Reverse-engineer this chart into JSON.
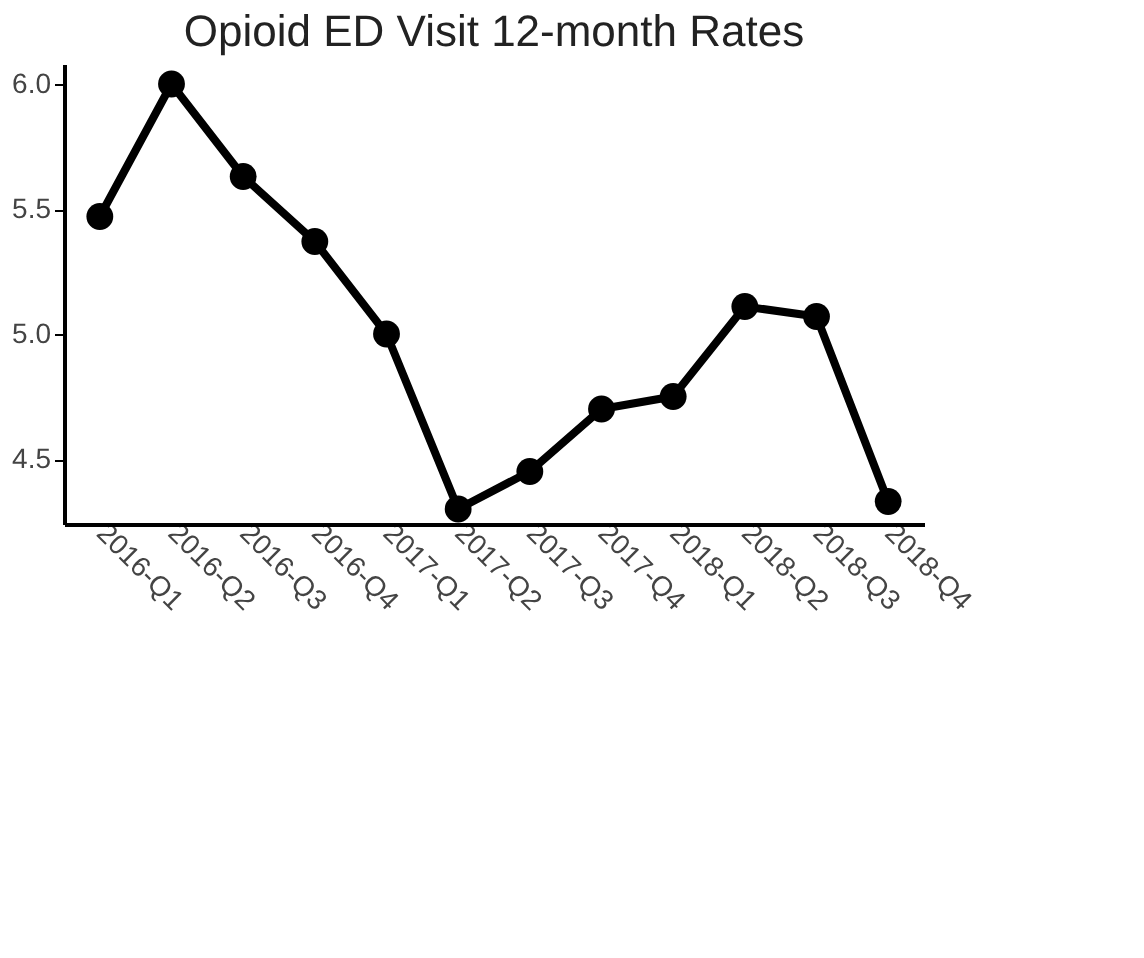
{
  "chart_data": {
    "type": "line",
    "title": "Opioid ED Visit 12-month Rates",
    "categories": [
      "2016-Q1",
      "2016-Q2",
      "2016-Q3",
      "2016-Q4",
      "2017-Q1",
      "2017-Q2",
      "2017-Q3",
      "2017-Q4",
      "2018-Q1",
      "2018-Q2",
      "2018-Q3",
      "2018-Q4"
    ],
    "series": [
      {
        "color": "#000000",
        "values": [
          5.47,
          6.0,
          5.63,
          5.37,
          5.0,
          4.3,
          4.45,
          4.7,
          4.75,
          5.11,
          5.07,
          4.33
        ]
      }
    ],
    "ylim": [
      4.24,
      6.08
    ],
    "yticks": [
      4.5,
      {
        "value": 5,
        "label": "5.0"
      },
      5.5,
      {
        "value": 6,
        "label": "6.0"
      }
    ],
    "marker": "circle",
    "line_style": "solid",
    "grid": false,
    "legend": false
  }
}
